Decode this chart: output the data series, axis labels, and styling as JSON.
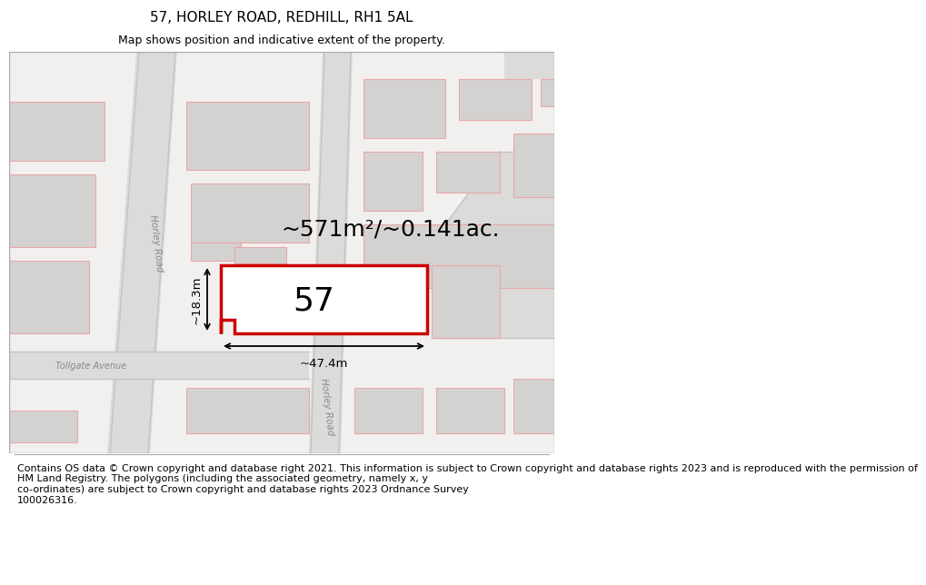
{
  "title": "57, HORLEY ROAD, REDHILL, RH1 5AL",
  "subtitle": "Map shows position and indicative extent of the property.",
  "footer": "Contains OS data © Crown copyright and database right 2021. This information is subject to Crown copyright and database rights 2023 and is reproduced with the permission of\nHM Land Registry. The polygons (including the associated geometry, namely x, y\nco-ordinates) are subject to Crown copyright and database rights 2023 Ordnance Survey\n100026316.",
  "area_label": "~571m²/~0.141ac.",
  "width_label": "~47.4m",
  "height_label": "~18.3m",
  "number_label": "57",
  "bg_color": "#f2f0ef",
  "road_fill": "#dddbd9",
  "bld_fill": "#d4d2d0",
  "bld_edge": "#e8a8a8",
  "plot_fill": "#ffffff",
  "plot_edge": "#cc0000",
  "road_text_color": "#888888",
  "title_fs": 11,
  "subtitle_fs": 9,
  "footer_fs": 8,
  "area_fs": 18,
  "num_fs": 26,
  "dim_fs": 9.5
}
